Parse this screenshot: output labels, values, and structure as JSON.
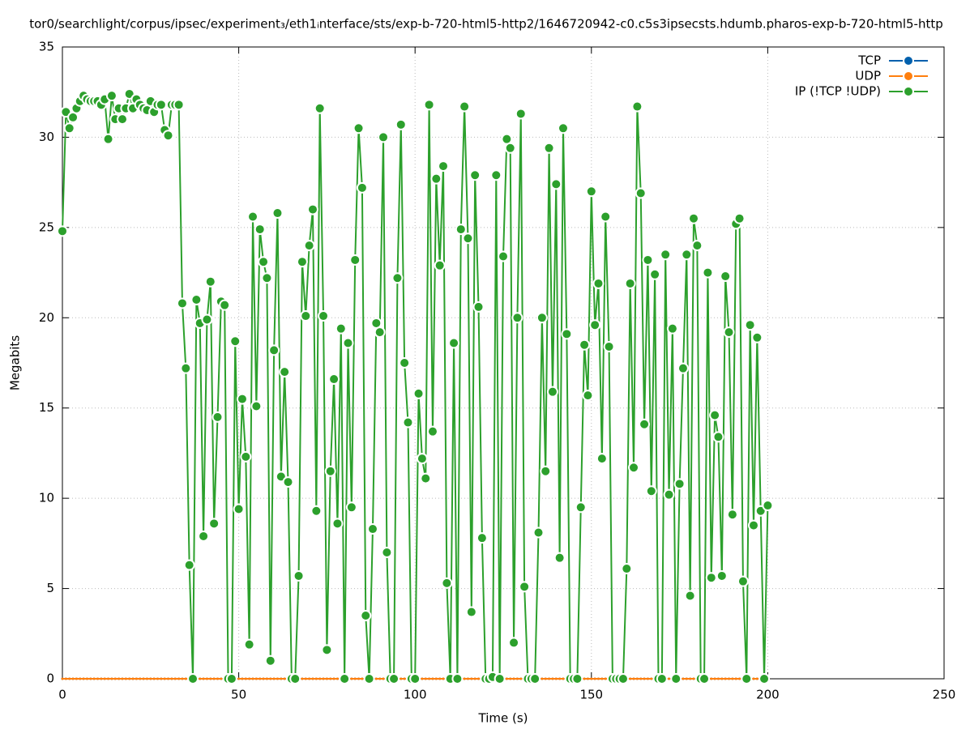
{
  "chart_data": {
    "type": "line",
    "title": "tor0/searchlight/corpus/ipsec/experiment₃/eth1ᵢnterface/sts/exp-b-720-html5-http2/1646720942-c0.c5s3ipsecsts.hdumb.pharos-exp-b-720-html5-http",
    "xlabel": "Time (s)",
    "ylabel": "Megabits",
    "xlim": [
      0,
      250
    ],
    "xticks": [
      0,
      50,
      100,
      150,
      200,
      250
    ],
    "ylim": [
      0,
      35
    ],
    "yticks": [
      0,
      5,
      10,
      15,
      20,
      25,
      30,
      35
    ],
    "grid": true,
    "legend": "upper right",
    "x": [
      0,
      1,
      2,
      3,
      4,
      5,
      6,
      7,
      8,
      9,
      10,
      11,
      12,
      13,
      14,
      15,
      16,
      17,
      18,
      19,
      20,
      21,
      22,
      23,
      24,
      25,
      26,
      27,
      28,
      29,
      30,
      31,
      32,
      33,
      34,
      35,
      36,
      37,
      38,
      39,
      40,
      41,
      42,
      43,
      44,
      45,
      46,
      47,
      48,
      49,
      50,
      51,
      52,
      53,
      54,
      55,
      56,
      57,
      58,
      59,
      60,
      61,
      62,
      63,
      64,
      65,
      66,
      67,
      68,
      69,
      70,
      71,
      72,
      73,
      74,
      75,
      76,
      77,
      78,
      79,
      80,
      81,
      82,
      83,
      84,
      85,
      86,
      87,
      88,
      89,
      90,
      91,
      92,
      93,
      94,
      95,
      96,
      97,
      98,
      99,
      100,
      101,
      102,
      103,
      104,
      105,
      106,
      107,
      108,
      109,
      110,
      111,
      112,
      113,
      114,
      115,
      116,
      117,
      118,
      119,
      120,
      121,
      122,
      123,
      124,
      125,
      126,
      127,
      128,
      129,
      130,
      131,
      132,
      133,
      134,
      135,
      136,
      137,
      138,
      139,
      140,
      141,
      142,
      143,
      144,
      145,
      146,
      147,
      148,
      149,
      150,
      151,
      152,
      153,
      154,
      155,
      156,
      157,
      158,
      159,
      160,
      161,
      162,
      163,
      164,
      165,
      166,
      167,
      168,
      169,
      170,
      171,
      172,
      173,
      174,
      175,
      176,
      177,
      178,
      179,
      180,
      181,
      182,
      183,
      184,
      185,
      186,
      187,
      188,
      189,
      190,
      191,
      192,
      193,
      194,
      195,
      196,
      197,
      198,
      199,
      200
    ],
    "series": [
      {
        "name": "TCP",
        "color": "#0060ad",
        "values": [
          0,
          0,
          0,
          0,
          0,
          0,
          0,
          0,
          0,
          0,
          0,
          0,
          0,
          0,
          0,
          0,
          0,
          0,
          0,
          0,
          0,
          0,
          0,
          0,
          0,
          0,
          0,
          0,
          0,
          0,
          0,
          0,
          0,
          0,
          0,
          0,
          0,
          0,
          0,
          0,
          0,
          0,
          0,
          0,
          0,
          0,
          0,
          0,
          0,
          0,
          0,
          0,
          0,
          0,
          0,
          0,
          0,
          0,
          0,
          0,
          0,
          0,
          0,
          0,
          0,
          0,
          0,
          0,
          0,
          0,
          0,
          0,
          0,
          0,
          0,
          0,
          0,
          0,
          0,
          0,
          0,
          0,
          0,
          0,
          0,
          0,
          0,
          0,
          0,
          0,
          0,
          0,
          0,
          0,
          0,
          0,
          0,
          0,
          0,
          0,
          0,
          0,
          0,
          0,
          0,
          0,
          0,
          0,
          0,
          0,
          0,
          0,
          0,
          0,
          0,
          0,
          0,
          0,
          0,
          0,
          0,
          0,
          0,
          0,
          0,
          0,
          0,
          0,
          0,
          0,
          0,
          0,
          0,
          0,
          0,
          0,
          0,
          0,
          0,
          0,
          0,
          0,
          0,
          0,
          0,
          0,
          0,
          0,
          0,
          0,
          0,
          0,
          0,
          0,
          0,
          0,
          0,
          0,
          0,
          0,
          0,
          0,
          0,
          0,
          0,
          0,
          0,
          0,
          0,
          0,
          0,
          0,
          0,
          0,
          0,
          0,
          0,
          0,
          0,
          0,
          0,
          0,
          0,
          0,
          0,
          0,
          0,
          0,
          0,
          0,
          0,
          0,
          0,
          0,
          0,
          0,
          0,
          0,
          0,
          0,
          0
        ]
      },
      {
        "name": "UDP",
        "color": "#ff7f0e",
        "values": [
          0,
          0,
          0,
          0,
          0,
          0,
          0,
          0,
          0,
          0,
          0,
          0,
          0,
          0,
          0,
          0,
          0,
          0,
          0,
          0,
          0,
          0,
          0,
          0,
          0,
          0,
          0,
          0,
          0,
          0,
          0,
          0,
          0,
          0,
          0,
          0,
          0,
          0,
          0,
          0,
          0,
          0,
          0,
          0,
          0,
          0,
          0,
          0,
          0,
          0,
          0,
          0,
          0,
          0,
          0,
          0,
          0,
          0,
          0,
          0,
          0,
          0,
          0,
          0,
          0,
          0,
          0,
          0,
          0,
          0,
          0,
          0,
          0,
          0,
          0,
          0,
          0,
          0,
          0,
          0,
          0,
          0,
          0,
          0,
          0,
          0,
          0,
          0,
          0,
          0,
          0,
          0,
          0,
          0,
          0,
          0,
          0,
          0,
          0,
          0,
          0,
          0,
          0,
          0,
          0,
          0,
          0,
          0,
          0,
          0,
          0,
          0,
          0,
          0,
          0,
          0,
          0,
          0,
          0,
          0,
          0,
          0,
          0,
          0,
          0,
          0,
          0,
          0,
          0,
          0,
          0,
          0,
          0,
          0,
          0,
          0,
          0,
          0,
          0,
          0,
          0,
          0,
          0,
          0,
          0,
          0,
          0,
          0,
          0,
          0,
          0,
          0,
          0,
          0,
          0,
          0,
          0,
          0,
          0,
          0,
          0,
          0,
          0,
          0,
          0,
          0,
          0,
          0,
          0,
          0,
          0,
          0,
          0,
          0,
          0,
          0,
          0,
          0,
          0,
          0,
          0,
          0,
          0,
          0,
          0,
          0,
          0,
          0,
          0,
          0,
          0,
          0,
          0,
          0,
          0,
          0,
          0,
          0,
          0,
          0,
          0
        ]
      },
      {
        "name": "IP (!TCP  !UDP)",
        "color": "#2ca02c",
        "values": [
          24.8,
          31.4,
          30.5,
          31.1,
          31.6,
          32.0,
          32.3,
          32.1,
          32.0,
          32.0,
          32.0,
          31.8,
          32.1,
          29.9,
          32.3,
          31.0,
          31.6,
          31.0,
          31.6,
          32.4,
          31.6,
          32.1,
          31.8,
          31.6,
          31.5,
          32.0,
          31.4,
          31.8,
          31.8,
          30.4,
          30.1,
          31.8,
          31.8,
          31.8,
          20.8,
          17.2,
          6.3,
          0,
          21.0,
          19.7,
          7.9,
          19.9,
          22.0,
          8.6,
          14.5,
          20.9,
          20.7,
          0,
          0,
          18.7,
          9.4,
          15.5,
          12.3,
          1.9,
          25.6,
          15.1,
          24.9,
          23.1,
          22.2,
          1.0,
          18.2,
          25.8,
          11.2,
          17.0,
          10.9,
          0,
          0,
          5.7,
          23.1,
          20.1,
          24.0,
          26.0,
          9.3,
          31.6,
          20.1,
          1.6,
          11.5,
          16.6,
          8.6,
          19.4,
          0,
          18.6,
          9.5,
          23.2,
          30.5,
          27.2,
          3.5,
          0,
          8.3,
          19.7,
          19.2,
          30.0,
          7.0,
          0,
          0,
          22.2,
          30.7,
          17.5,
          14.2,
          0,
          0,
          15.8,
          12.2,
          11.1,
          31.8,
          13.7,
          27.7,
          22.9,
          28.4,
          5.3,
          0,
          18.6,
          0,
          24.9,
          31.7,
          24.4,
          3.7,
          27.9,
          20.6,
          7.8,
          0,
          0,
          0.1,
          27.9,
          0,
          23.4,
          29.9,
          29.4,
          2.0,
          20.0,
          31.3,
          5.1,
          0,
          0,
          0,
          8.1,
          20.0,
          11.5,
          29.4,
          15.9,
          27.4,
          6.7,
          30.5,
          19.1,
          0,
          0,
          0,
          9.5,
          18.5,
          15.7,
          27.0,
          19.6,
          21.9,
          12.2,
          25.6,
          18.4,
          0,
          0,
          0,
          0,
          6.1,
          21.9,
          11.7,
          31.7,
          26.9,
          14.1,
          23.2,
          10.4,
          22.4,
          0,
          0,
          23.5,
          10.2,
          19.4,
          0,
          10.8,
          17.2,
          23.5,
          4.6,
          25.5,
          24.0,
          0,
          0,
          22.5,
          5.6,
          14.6,
          13.4,
          5.7,
          22.3,
          19.2,
          9.1,
          25.2,
          25.5,
          5.4,
          0,
          19.6,
          8.5,
          18.9,
          9.3,
          0,
          9.6
        ]
      }
    ]
  }
}
